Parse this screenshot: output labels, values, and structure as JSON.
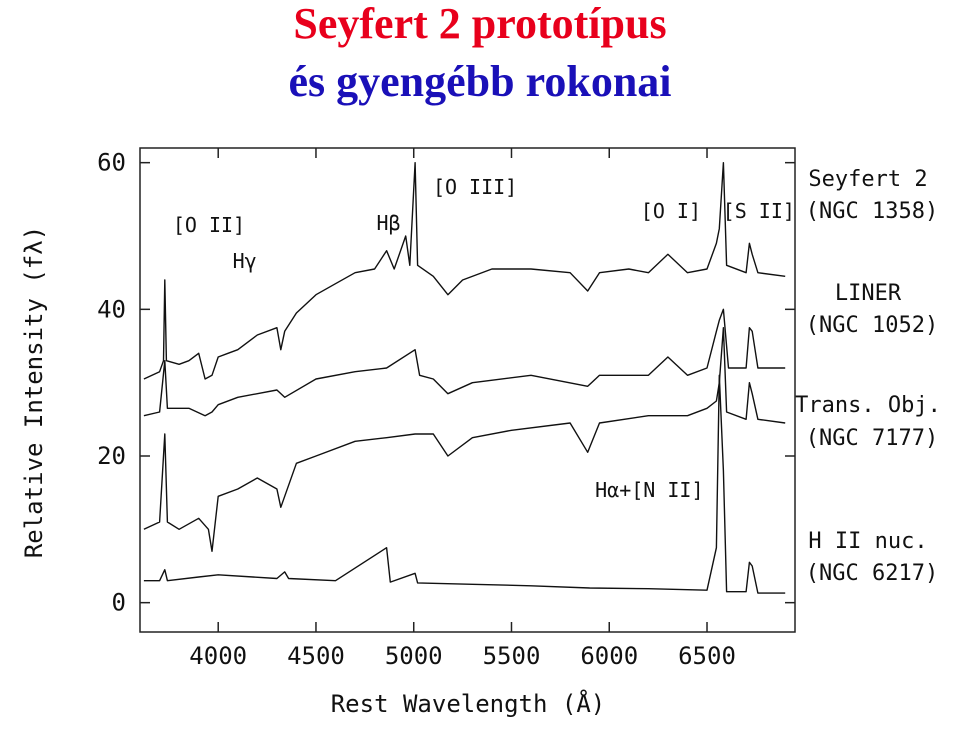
{
  "slide": {
    "title": "Seyfert 2 prototípus",
    "subtitle": "és gyengébb rokonai"
  },
  "chart_data": {
    "type": "line",
    "xlabel": "Rest Wavelength (Å)",
    "ylabel": "Relative Intensity (fλ)",
    "xlim": [
      3600,
      6950
    ],
    "ylim": [
      -4,
      62
    ],
    "x_ticks": [
      4000,
      4500,
      5000,
      5500,
      6000,
      6500
    ],
    "y_ticks": [
      0,
      20,
      40,
      60
    ],
    "grid": false,
    "line_annotations": [
      {
        "text": "[O II]",
        "x": 3727
      },
      {
        "text": "Hγ",
        "x": 4340
      },
      {
        "text": "Hβ",
        "x": 4861
      },
      {
        "text": "[O III]",
        "x": 5007
      },
      {
        "text": "[O I]",
        "x": 6300
      },
      {
        "text": "[S II]",
        "x": 6724
      },
      {
        "text": "Hα+[N II]",
        "x": 6563
      }
    ],
    "series": [
      {
        "name": "Seyfert 2",
        "object": "(NGC 1358)",
        "points": [
          [
            3620,
            30.5
          ],
          [
            3700,
            31.5
          ],
          [
            3720,
            33
          ],
          [
            3727,
            44
          ],
          [
            3735,
            33
          ],
          [
            3800,
            32.5
          ],
          [
            3850,
            33
          ],
          [
            3900,
            34
          ],
          [
            3933,
            30.5
          ],
          [
            3968,
            31
          ],
          [
            4000,
            33.5
          ],
          [
            4050,
            34
          ],
          [
            4100,
            34.5
          ],
          [
            4200,
            36.5
          ],
          [
            4300,
            37.5
          ],
          [
            4320,
            34.5
          ],
          [
            4340,
            37
          ],
          [
            4400,
            39.5
          ],
          [
            4500,
            42
          ],
          [
            4600,
            43.5
          ],
          [
            4700,
            45
          ],
          [
            4800,
            45.5
          ],
          [
            4861,
            48
          ],
          [
            4900,
            45.5
          ],
          [
            4959,
            50
          ],
          [
            4980,
            46
          ],
          [
            5007,
            60
          ],
          [
            5020,
            46
          ],
          [
            5100,
            44.5
          ],
          [
            5175,
            42
          ],
          [
            5250,
            44
          ],
          [
            5400,
            45.5
          ],
          [
            5600,
            45.5
          ],
          [
            5800,
            45
          ],
          [
            5890,
            42.5
          ],
          [
            5950,
            45
          ],
          [
            6100,
            45.5
          ],
          [
            6200,
            45
          ],
          [
            6300,
            47.5
          ],
          [
            6400,
            45
          ],
          [
            6500,
            45.5
          ],
          [
            6548,
            49
          ],
          [
            6563,
            51
          ],
          [
            6584,
            60
          ],
          [
            6600,
            46
          ],
          [
            6700,
            45
          ],
          [
            6717,
            49
          ],
          [
            6731,
            47.5
          ],
          [
            6760,
            45
          ],
          [
            6900,
            44.5
          ]
        ]
      },
      {
        "name": "LINER",
        "object": "(NGC 1052)",
        "points": [
          [
            3620,
            25.5
          ],
          [
            3700,
            26
          ],
          [
            3727,
            33
          ],
          [
            3740,
            26.5
          ],
          [
            3850,
            26.5
          ],
          [
            3933,
            25.5
          ],
          [
            3968,
            26
          ],
          [
            4000,
            27
          ],
          [
            4100,
            28
          ],
          [
            4300,
            29
          ],
          [
            4340,
            28
          ],
          [
            4500,
            30.5
          ],
          [
            4700,
            31.5
          ],
          [
            4861,
            32
          ],
          [
            5007,
            34.5
          ],
          [
            5030,
            31
          ],
          [
            5100,
            30.5
          ],
          [
            5175,
            28.5
          ],
          [
            5300,
            30
          ],
          [
            5600,
            31
          ],
          [
            5890,
            29.5
          ],
          [
            5950,
            31
          ],
          [
            6200,
            31
          ],
          [
            6300,
            33.5
          ],
          [
            6400,
            31
          ],
          [
            6500,
            32
          ],
          [
            6548,
            37
          ],
          [
            6563,
            38.5
          ],
          [
            6584,
            40
          ],
          [
            6610,
            32
          ],
          [
            6700,
            32
          ],
          [
            6717,
            37.5
          ],
          [
            6731,
            37
          ],
          [
            6760,
            32
          ],
          [
            6900,
            32
          ]
        ]
      },
      {
        "name": "Trans. Obj.",
        "object": "(NGC 7177)",
        "points": [
          [
            3620,
            10
          ],
          [
            3700,
            11
          ],
          [
            3727,
            23
          ],
          [
            3740,
            11
          ],
          [
            3800,
            10
          ],
          [
            3900,
            11.5
          ],
          [
            3950,
            10
          ],
          [
            3968,
            7
          ],
          [
            4000,
            14.5
          ],
          [
            4100,
            15.5
          ],
          [
            4200,
            17
          ],
          [
            4300,
            15.5
          ],
          [
            4320,
            13
          ],
          [
            4400,
            19
          ],
          [
            4500,
            20
          ],
          [
            4700,
            22
          ],
          [
            4861,
            22.5
          ],
          [
            5007,
            23
          ],
          [
            5100,
            23
          ],
          [
            5175,
            20
          ],
          [
            5300,
            22.5
          ],
          [
            5500,
            23.5
          ],
          [
            5800,
            24.5
          ],
          [
            5890,
            20.5
          ],
          [
            5950,
            24.5
          ],
          [
            6200,
            25.5
          ],
          [
            6400,
            25.5
          ],
          [
            6500,
            26.5
          ],
          [
            6548,
            27.5
          ],
          [
            6563,
            30
          ],
          [
            6584,
            37.5
          ],
          [
            6600,
            26
          ],
          [
            6700,
            25
          ],
          [
            6717,
            30
          ],
          [
            6731,
            28.5
          ],
          [
            6760,
            25
          ],
          [
            6900,
            24.5
          ]
        ]
      },
      {
        "name": "H II nuc.",
        "object": "(NGC 6217)",
        "points": [
          [
            3620,
            3
          ],
          [
            3700,
            3
          ],
          [
            3727,
            4.5
          ],
          [
            3740,
            3
          ],
          [
            3900,
            3.5
          ],
          [
            4000,
            3.8
          ],
          [
            4300,
            3.3
          ],
          [
            4340,
            4.2
          ],
          [
            4360,
            3.3
          ],
          [
            4600,
            3
          ],
          [
            4861,
            7.5
          ],
          [
            4880,
            2.8
          ],
          [
            5007,
            4
          ],
          [
            5020,
            2.7
          ],
          [
            5300,
            2.5
          ],
          [
            5600,
            2.3
          ],
          [
            5900,
            2
          ],
          [
            6200,
            1.9
          ],
          [
            6500,
            1.7
          ],
          [
            6548,
            7.5
          ],
          [
            6563,
            31
          ],
          [
            6584,
            18
          ],
          [
            6600,
            1.5
          ],
          [
            6700,
            1.5
          ],
          [
            6717,
            5.5
          ],
          [
            6731,
            5
          ],
          [
            6760,
            1.3
          ],
          [
            6900,
            1.3
          ]
        ]
      }
    ]
  }
}
